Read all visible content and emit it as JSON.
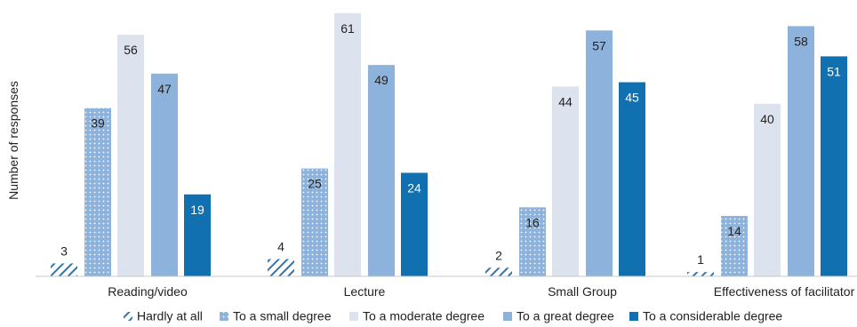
{
  "chart_data": {
    "type": "bar",
    "title": "",
    "xlabel": "",
    "ylabel": "Number of responses",
    "categories": [
      "Reading/video",
      "Lecture",
      "Small Group",
      "Effectiveness of facilitator"
    ],
    "series": [
      {
        "name": "Hardly at all",
        "values": [
          3,
          4,
          2,
          1
        ],
        "color": "#2f74ab",
        "pattern": "hatch"
      },
      {
        "name": "To a small degree",
        "values": [
          39,
          25,
          16,
          14
        ],
        "color": "#8db3dc",
        "pattern": "dots"
      },
      {
        "name": "To a moderate degree",
        "values": [
          56,
          61,
          44,
          40
        ],
        "color": "#dce3ee",
        "pattern": "solid"
      },
      {
        "name": "To a great degree",
        "values": [
          47,
          49,
          57,
          58
        ],
        "color": "#8db3dc",
        "pattern": "solid"
      },
      {
        "name": "To a considerable degree",
        "values": [
          19,
          24,
          45,
          51
        ],
        "color": "#1070b0",
        "pattern": "solid"
      }
    ],
    "ylim": [
      0,
      62
    ],
    "grid": false,
    "legend_position": "bottom"
  }
}
